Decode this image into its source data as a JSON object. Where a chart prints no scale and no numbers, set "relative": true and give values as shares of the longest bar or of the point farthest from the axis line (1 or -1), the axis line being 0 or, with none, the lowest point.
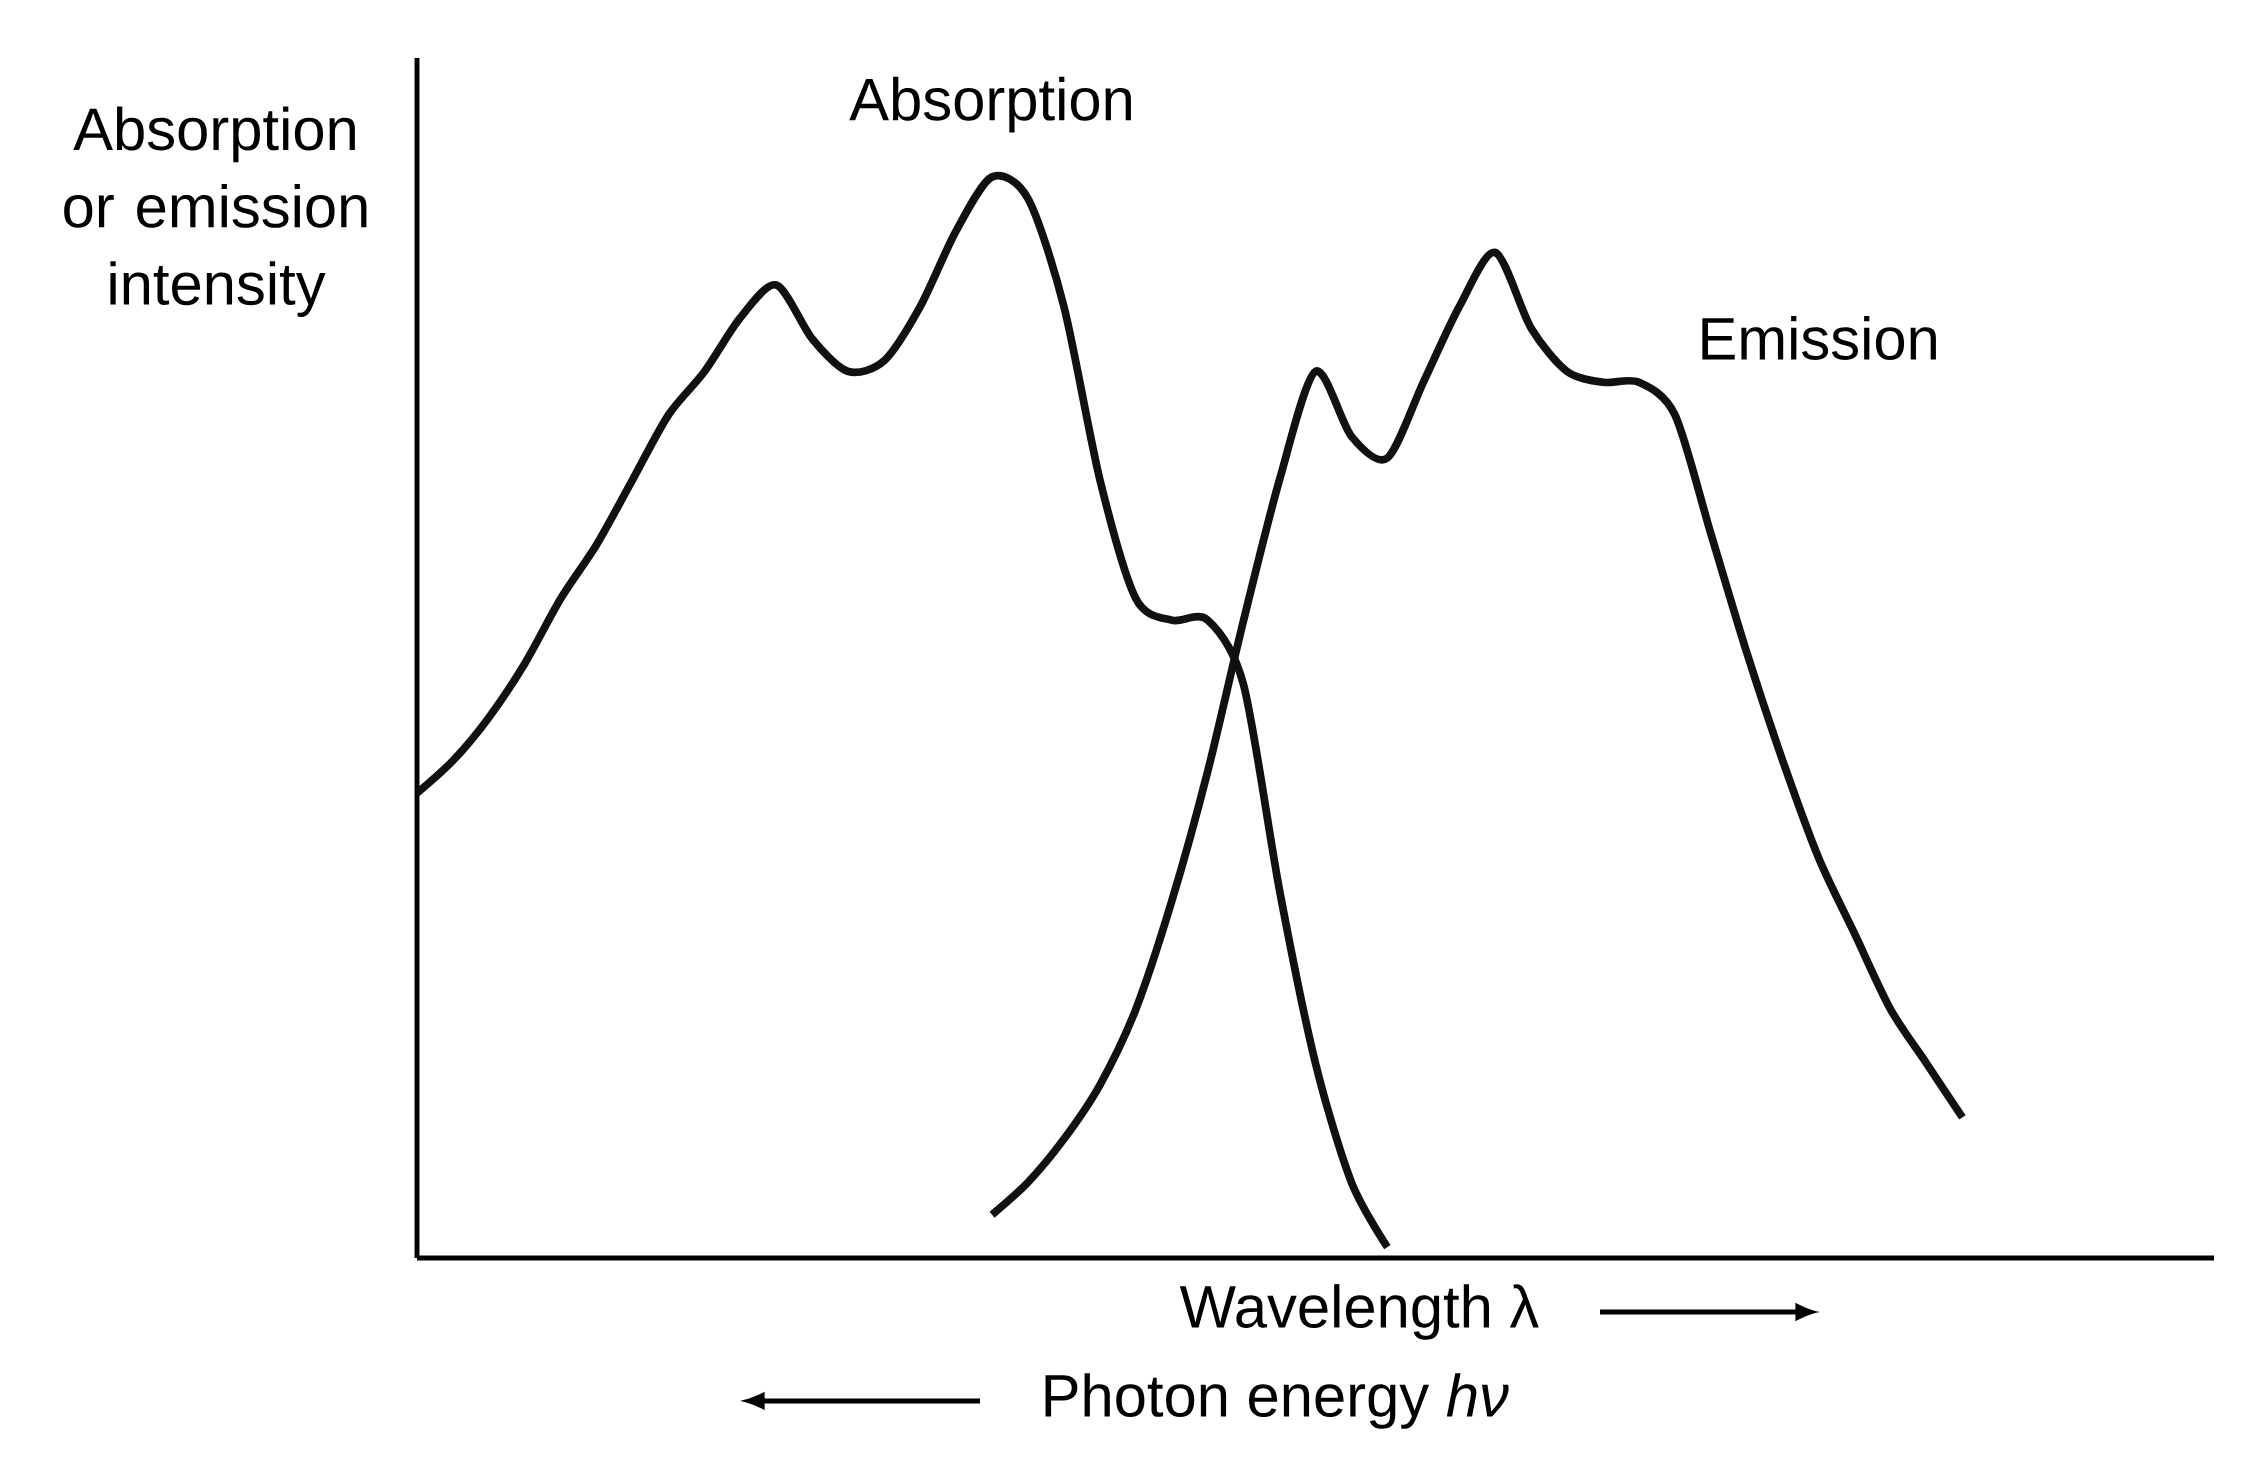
{
  "chart_data": {
    "type": "line",
    "relative": true,
    "ylabel": "Absorption or emission intensity",
    "xlabel": "Wavelength λ",
    "annotations": [
      "Photon energy *hν*"
    ],
    "categories": [
      null,
      null,
      null,
      null,
      null,
      null,
      null,
      null,
      null,
      null,
      null,
      null,
      null,
      null,
      null,
      null,
      null,
      null,
      null,
      null,
      null,
      null,
      null,
      null,
      null,
      null,
      null,
      null,
      null,
      null,
      null,
      null,
      null,
      null,
      null,
      null,
      null,
      null,
      null,
      null,
      null,
      null,
      null,
      null,
      null,
      null,
      null,
      null,
      null,
      null,
      null
    ],
    "series": [
      {
        "name": "Absorption",
        "color": "#111111",
        "values": [
          0.43,
          0.46,
          0.5,
          0.55,
          0.61,
          0.66,
          0.72,
          0.78,
          0.82,
          0.87,
          0.9,
          0.85,
          0.82,
          0.83,
          0.88,
          0.95,
          1.0,
          0.98,
          0.88,
          0.72,
          0.61,
          0.59,
          0.59,
          0.53,
          0.34,
          0.18,
          0.07,
          0.01,
          null,
          null,
          null,
          null,
          null,
          null,
          null,
          null,
          null,
          null,
          null,
          null,
          null,
          null,
          null,
          null,
          null,
          null,
          null,
          null,
          null,
          null,
          null
        ]
      },
      {
        "name": "Emission",
        "color": "#111111",
        "values": [
          null,
          null,
          null,
          null,
          null,
          null,
          null,
          null,
          null,
          null,
          null,
          null,
          null,
          null,
          null,
          null,
          0.04,
          0.07,
          0.11,
          0.16,
          0.23,
          0.33,
          0.45,
          0.59,
          0.72,
          0.82,
          0.76,
          0.74,
          0.81,
          0.88,
          0.93,
          0.86,
          0.82,
          0.81,
          0.81,
          0.78,
          0.67,
          0.56,
          0.46,
          0.37,
          0.3,
          0.23,
          0.18,
          0.13,
          null,
          null,
          null,
          null,
          null,
          null,
          null
        ]
      }
    ]
  }
}
